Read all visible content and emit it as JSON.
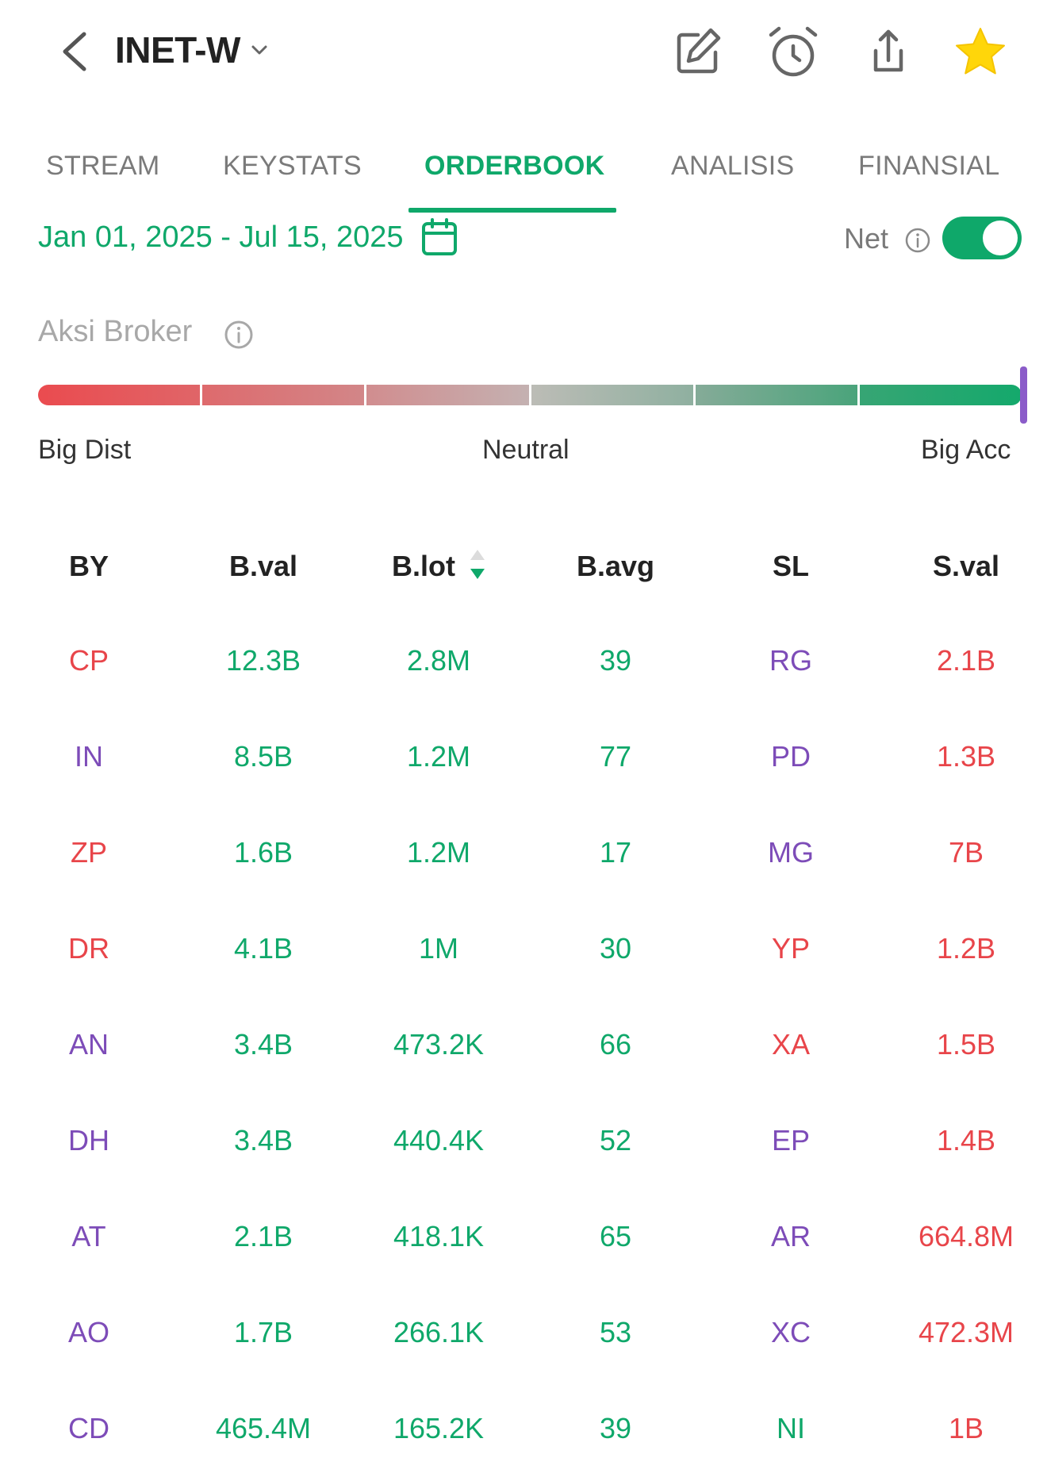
{
  "header": {
    "title": "INET-W",
    "icons": [
      "back-arrow-icon",
      "chevron-down-icon",
      "edit-icon",
      "alarm-icon",
      "share-icon",
      "star-icon"
    ],
    "star_color": "#ffd60a"
  },
  "tabs": [
    {
      "label": "STREAM",
      "active": false
    },
    {
      "label": "KEYSTATS",
      "active": false
    },
    {
      "label": "ORDERBOOK",
      "active": true
    },
    {
      "label": "ANALISIS",
      "active": false
    },
    {
      "label": "FINANSIAL",
      "active": false
    }
  ],
  "date_range": "Jan 01, 2025 - Jul 15, 2025",
  "net": {
    "label": "Net",
    "enabled": true
  },
  "aksi_broker": {
    "label": "Aksi Broker",
    "scale_labels": {
      "left": "Big Dist",
      "center": "Neutral",
      "right": "Big Acc"
    },
    "level": 1.0
  },
  "colors": {
    "accent": "#0fa86a",
    "negative": "#e8454a",
    "broker_purple": "#7d4cb8"
  },
  "table": {
    "columns": [
      "BY",
      "B.val",
      "B.lot",
      "B.avg",
      "SL",
      "S.val"
    ],
    "sorted_column": "B.lot",
    "sort_direction": "desc",
    "rows": [
      {
        "by": "CP",
        "by_color": "red",
        "bval": "12.3B",
        "blot": "2.8M",
        "bavg": "39",
        "sl": "RG",
        "sl_color": "purple",
        "sval": "2.1B"
      },
      {
        "by": "IN",
        "by_color": "purple",
        "bval": "8.5B",
        "blot": "1.2M",
        "bavg": "77",
        "sl": "PD",
        "sl_color": "purple",
        "sval": "1.3B"
      },
      {
        "by": "ZP",
        "by_color": "red",
        "bval": "1.6B",
        "blot": "1.2M",
        "bavg": "17",
        "sl": "MG",
        "sl_color": "purple",
        "sval": "7B"
      },
      {
        "by": "DR",
        "by_color": "red",
        "bval": "4.1B",
        "blot": "1M",
        "bavg": "30",
        "sl": "YP",
        "sl_color": "red",
        "sval": "1.2B"
      },
      {
        "by": "AN",
        "by_color": "purple",
        "bval": "3.4B",
        "blot": "473.2K",
        "bavg": "66",
        "sl": "XA",
        "sl_color": "red",
        "sval": "1.5B"
      },
      {
        "by": "DH",
        "by_color": "purple",
        "bval": "3.4B",
        "blot": "440.4K",
        "bavg": "52",
        "sl": "EP",
        "sl_color": "purple",
        "sval": "1.4B"
      },
      {
        "by": "AT",
        "by_color": "purple",
        "bval": "2.1B",
        "blot": "418.1K",
        "bavg": "65",
        "sl": "AR",
        "sl_color": "purple",
        "sval": "664.8M"
      },
      {
        "by": "AO",
        "by_color": "purple",
        "bval": "1.7B",
        "blot": "266.1K",
        "bavg": "53",
        "sl": "XC",
        "sl_color": "purple",
        "sval": "472.3M"
      },
      {
        "by": "CD",
        "by_color": "purple",
        "bval": "465.4M",
        "blot": "165.2K",
        "bavg": "39",
        "sl": "NI",
        "sl_color": "green",
        "sval": "1B"
      }
    ]
  }
}
